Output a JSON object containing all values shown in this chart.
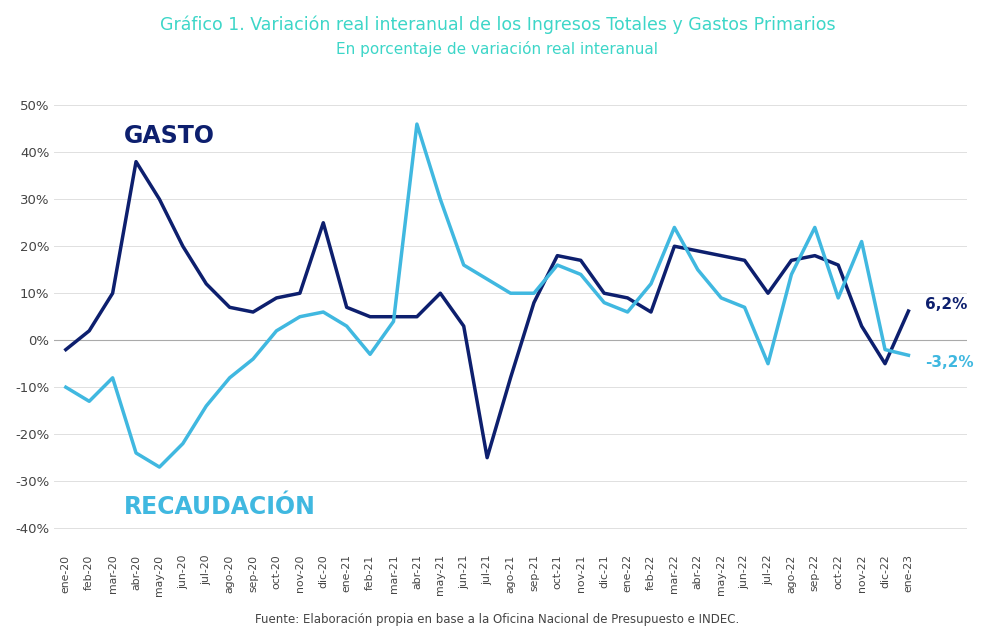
{
  "title": "Gráfico 1. Variación real interanual de los Ingresos Totales y Gastos Primarios",
  "subtitle": "En porcentaje de variación real interanual",
  "footnote": "Fuente: Elaboración propia en base a la Oficina Nacional de Presupuesto e INDEC.",
  "title_color": "#3dd6c8",
  "subtitle_color": "#3dd6c8",
  "background_color": "#ffffff",
  "gasto_color": "#0d1f6e",
  "recaudacion_color": "#40b8e0",
  "labels": [
    "ene-20",
    "feb-20",
    "mar-20",
    "abr-20",
    "may-20",
    "jun-20",
    "jul-20",
    "ago-20",
    "sep-20",
    "oct-20",
    "nov-20",
    "dic-20",
    "ene-21",
    "feb-21",
    "mar-21",
    "abr-21",
    "may-21",
    "jun-21",
    "jul-21",
    "ago-21",
    "sep-21",
    "oct-21",
    "nov-21",
    "dic-21",
    "ene-22",
    "feb-22",
    "mar-22",
    "abr-22",
    "may-22",
    "jun-22",
    "jul-22",
    "ago-22",
    "sep-22",
    "oct-22",
    "nov-22",
    "dic-22",
    "ene-23"
  ],
  "gasto": [
    -2,
    2,
    10,
    38,
    30,
    20,
    12,
    7,
    6,
    9,
    10,
    25,
    7,
    5,
    5,
    5,
    10,
    3,
    -25,
    -8,
    8,
    18,
    17,
    10,
    9,
    6,
    20,
    19,
    18,
    17,
    10,
    17,
    18,
    16,
    3,
    -5,
    6.2
  ],
  "recaudacion": [
    -10,
    -13,
    -8,
    -24,
    -27,
    -22,
    -14,
    -8,
    -4,
    2,
    5,
    6,
    3,
    -3,
    4,
    46,
    30,
    16,
    13,
    10,
    10,
    16,
    14,
    8,
    6,
    12,
    24,
    15,
    9,
    7,
    -5,
    14,
    24,
    9,
    21,
    -2,
    -3.2
  ],
  "gasto_label": "GASTO",
  "recaudacion_label": "RECAUDACIÓN",
  "ylim": [
    -45,
    55
  ],
  "yticks": [
    -40,
    -30,
    -20,
    -10,
    0,
    10,
    20,
    30,
    40,
    50
  ],
  "end_label_gasto": "6,2%",
  "end_label_recaudacion": "-3,2%"
}
